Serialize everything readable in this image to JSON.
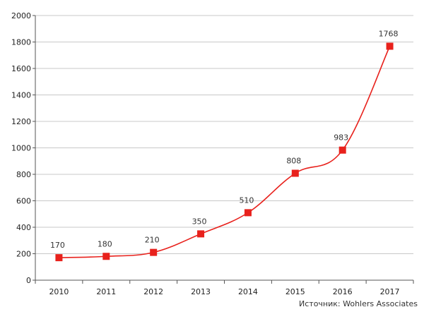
{
  "chart_data": {
    "type": "line",
    "categories": [
      "2010",
      "2011",
      "2012",
      "2013",
      "2014",
      "2015",
      "2016",
      "2017"
    ],
    "series": [
      {
        "values": [
          170,
          180,
          210,
          350,
          510,
          808,
          983,
          1768
        ]
      }
    ],
    "data_labels": [
      "170",
      "180",
      "210",
      "350",
      "510",
      "808",
      "983",
      "1768"
    ],
    "ylim": [
      0,
      2000
    ],
    "yticks": [
      0,
      200,
      400,
      600,
      800,
      1000,
      1200,
      1400,
      1600,
      1800,
      2000
    ],
    "grid": "horizontal",
    "line_color": "#e8211c",
    "marker_color": "#e8211c",
    "marker": "square",
    "grid_color": "#c8c8c8"
  },
  "source": "Источник: Wohlers Associates"
}
